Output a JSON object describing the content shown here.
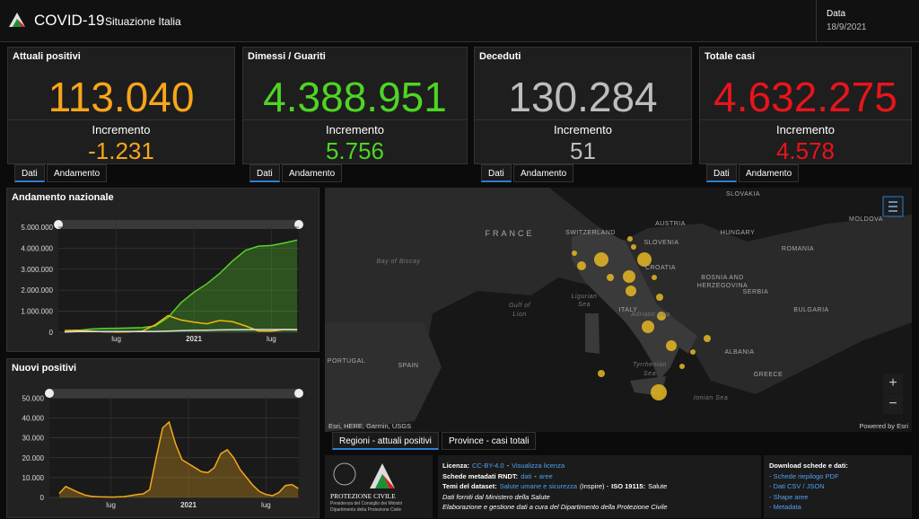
{
  "header": {
    "title": "COVID-19",
    "subtitle": "Situazione Italia",
    "date_label": "Data",
    "date": "18/9/2021"
  },
  "cards": [
    {
      "title": "Attuali positivi",
      "value": "113.040",
      "increment_label": "Incremento",
      "increment": "-1.231",
      "color": "#f7a51c",
      "tabs": [
        "Dati",
        "Andamento"
      ]
    },
    {
      "title": "Dimessi / Guariti",
      "value": "4.388.951",
      "increment_label": "Incremento",
      "increment": "5.756",
      "color": "#4fd424",
      "tabs": [
        "Dati",
        "Andamento"
      ]
    },
    {
      "title": "Deceduti",
      "value": "130.284",
      "increment_label": "Incremento",
      "increment": "51",
      "color": "#bdbdbd",
      "tabs": [
        "Dati",
        "Andamento"
      ]
    },
    {
      "title": "Totale casi",
      "value": "4.632.275",
      "increment_label": "Incremento",
      "increment": "4.578",
      "color": "#e8141b",
      "tabs": [
        "Dati",
        "Andamento"
      ]
    }
  ],
  "chart_data": [
    {
      "type": "line",
      "title": "Andamento nazionale",
      "categories": [
        null,
        null,
        null,
        null,
        "lug",
        null,
        null,
        null,
        null,
        null,
        "2021",
        null,
        null,
        null,
        null,
        null,
        "lug",
        null,
        null
      ],
      "series": [
        {
          "color": "#5ad12a",
          "area": true,
          "values": [
            10000,
            80000,
            150000,
            180000,
            190000,
            200000,
            220000,
            300000,
            700000,
            1400000,
            1900000,
            2300000,
            2800000,
            3400000,
            3900000,
            4100000,
            4130000,
            4250000,
            4388951
          ]
        },
        {
          "color": "#f2b713",
          "area": false,
          "values": [
            80000,
            100000,
            50000,
            20000,
            13000,
            20000,
            50000,
            350000,
            790000,
            580000,
            480000,
            400000,
            560000,
            500000,
            300000,
            60000,
            50000,
            130000,
            113040
          ]
        },
        {
          "color": "#dddddd",
          "area": false,
          "values": [
            10000,
            30000,
            33000,
            35000,
            35000,
            35000,
            36000,
            40000,
            55000,
            75000,
            90000,
            98000,
            110000,
            120000,
            126000,
            127000,
            128000,
            129000,
            130284
          ]
        }
      ],
      "ylim": [
        0,
        5300000
      ],
      "yticks": [
        0,
        {
          "value": 1000000,
          "label": "1.000.000"
        },
        {
          "value": 2000000,
          "label": "2.000.000"
        },
        {
          "value": 3000000,
          "label": "3.000.000"
        },
        {
          "value": 4000000,
          "label": "4.000.000"
        },
        {
          "value": 5000000,
          "label": "5.000.000"
        }
      ],
      "grid": true
    },
    {
      "type": "line",
      "title": "Nuovi positivi",
      "categories": [
        null,
        null,
        null,
        null,
        null,
        null,
        null,
        null,
        "lug",
        null,
        null,
        null,
        null,
        null,
        null,
        null,
        null,
        null,
        null,
        null,
        "2021",
        null,
        null,
        null,
        null,
        null,
        null,
        null,
        null,
        null,
        null,
        null,
        "lug",
        null,
        null,
        null,
        null,
        null
      ],
      "series": [
        {
          "color": "#f2a91b",
          "area": true,
          "values": [
            2000,
            5500,
            4000,
            2500,
            1200,
            600,
            300,
            250,
            200,
            250,
            400,
            900,
            1500,
            1800,
            4000,
            20000,
            35000,
            38000,
            27000,
            19000,
            17000,
            15000,
            13000,
            12500,
            15000,
            22000,
            24000,
            20000,
            14000,
            10000,
            6000,
            3000,
            1500,
            900,
            2500,
            6000,
            6500,
            4500
          ]
        }
      ],
      "ylim": [
        0,
        52000
      ],
      "yticks": [
        0,
        {
          "value": 10000,
          "label": "10.000"
        },
        {
          "value": 20000,
          "label": "20.000"
        },
        {
          "value": 30000,
          "label": "30.000"
        },
        {
          "value": 40000,
          "label": "40.000"
        },
        {
          "value": 50000,
          "label": "50.000"
        }
      ],
      "grid": true
    }
  ],
  "map": {
    "labels": [
      "SLOVAKIA",
      "AUSTRIA",
      "HUNGARY",
      "MOLDOVA",
      "ROMANIA",
      "SLOVENIA",
      "CROATIA",
      "SWITZERLAND",
      "FRANCE",
      "BOSNIA AND",
      "HERZEGOVINA",
      "SERBIA",
      "BULGARIA",
      "ALBANIA",
      "GREECE",
      "ITALY",
      "PORTUGAL",
      "SPAIN",
      "Bay of Biscay",
      "Ligurian",
      "Sea",
      "Gulf of",
      "Lion",
      "Adriatic Sea",
      "Tyrrhenian",
      "Sea",
      "Ionian Sea"
    ],
    "attribution": "Esri, HERE, Garmin, USGS",
    "powered": "Powered by Esri",
    "tabs": [
      "Regioni - attuali positivi",
      "Province - casi totali"
    ]
  },
  "footer": {
    "logo": [
      "PROTEZIONE CIVILE",
      "Presidenza del Consiglio dei Ministri",
      "Dipartimento della Protezione Civile"
    ],
    "lines": [
      [
        {
          "text": "Licenza:",
          "style": "bold"
        },
        {
          "text": "CC-BY-4.0",
          "style": "link"
        },
        {
          "text": "-",
          "style": "plain"
        },
        {
          "text": "Visualizza licenza",
          "style": "link"
        }
      ],
      [
        {
          "text": "Schede metadati RNDT:",
          "style": "bold"
        },
        {
          "text": "dati",
          "style": "link"
        },
        {
          "text": "-",
          "style": "plain"
        },
        {
          "text": "aree",
          "style": "link"
        }
      ],
      [
        {
          "text": "Temi del dataset:",
          "style": "bold"
        },
        {
          "text": "Salute umane e sicurezza",
          "style": "link"
        },
        {
          "text": "(Inspire) -",
          "style": "plain"
        },
        {
          "text": "ISO 19115:",
          "style": "bold"
        },
        {
          "text": "Salute",
          "style": "plain"
        }
      ],
      [
        {
          "text": "Dati forniti dal Ministero della Salute",
          "style": "italic"
        }
      ],
      [
        {
          "text": "Elaborazione e gestione dati a cura del Dipartimento della Protezione Civile",
          "style": "italic"
        }
      ]
    ],
    "downloads_title": "Download schede e dati:",
    "downloads": [
      "- Schede riepilogo PDF",
      "- Dati CSV / JSON",
      "- Shape aree",
      "- Metadata"
    ]
  }
}
